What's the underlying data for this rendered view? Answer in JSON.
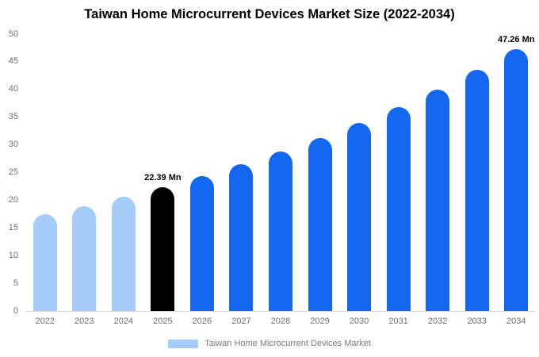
{
  "chart_data": {
    "type": "bar",
    "title": "Taiwan Home Microcurrent Devices Market Size (2022-2034)",
    "categories": [
      "2022",
      "2023",
      "2024",
      "2025",
      "2026",
      "2027",
      "2028",
      "2029",
      "2030",
      "2031",
      "2032",
      "2033",
      "2034"
    ],
    "values": [
      17.45,
      18.96,
      20.61,
      22.39,
      24.33,
      26.44,
      28.73,
      31.21,
      33.92,
      36.85,
      40.04,
      43.51,
      47.26
    ],
    "unit": "Mn",
    "xlabel": "",
    "ylabel": "",
    "ylim": [
      0,
      50
    ],
    "yticks": [
      0,
      5,
      10,
      15,
      20,
      25,
      30,
      35,
      40,
      45,
      50
    ],
    "grid": false,
    "legend_position": "bottom",
    "bar_colors": [
      "#a5cbf8",
      "#a5cbf8",
      "#a5cbf8",
      "#000000",
      "#1467f0",
      "#1467f0",
      "#1467f0",
      "#1467f0",
      "#1467f0",
      "#1467f0",
      "#1467f0",
      "#1467f0",
      "#1467f0"
    ],
    "data_labels": [
      {
        "index": 3,
        "text": "22.39 Mn"
      },
      {
        "index": 12,
        "text": "47.26 Mn"
      }
    ]
  },
  "legend": {
    "label": "Taiwan Home Microcurrent Devices Market",
    "swatch_color": "#a5cbf8"
  },
  "colors": {
    "historical_bar": "#a5cbf8",
    "base_year_bar": "#000000",
    "forecast_bar": "#1467f0",
    "axis_text": "#6e6e6e",
    "axis_line": "#d6d6d6"
  }
}
